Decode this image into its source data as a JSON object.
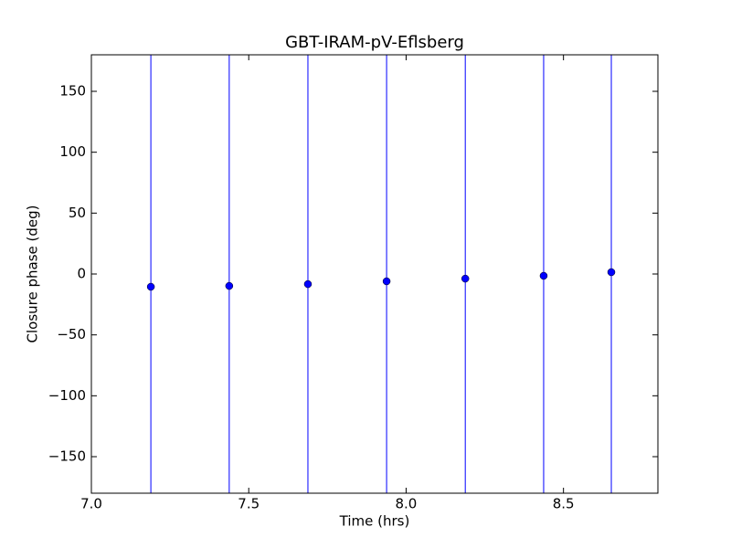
{
  "chart_data": {
    "type": "errorbar",
    "title": "GBT-IRAM-pV-Eflsberg",
    "xlabel": "Time (hrs)",
    "ylabel": "Closure phase (deg)",
    "x": [
      7.189,
      7.438,
      7.688,
      7.938,
      8.188,
      8.437,
      8.652
    ],
    "values": [
      -10.5,
      -9.8,
      -8.3,
      -6,
      -3.8,
      -1.5,
      1.5
    ],
    "errors": [
      200,
      200,
      200,
      200,
      200,
      200,
      200
    ],
    "color": "#0000ff",
    "xlim": [
      7.0,
      8.8
    ],
    "xticks": [
      {
        "value": 7,
        "label": "7.0"
      },
      7.5,
      {
        "value": 8,
        "label": "8.0"
      },
      8.5
    ],
    "ylim": [
      -180,
      180
    ],
    "yticks": [
      {
        "value": -150,
        "label": "−150"
      },
      {
        "value": -100,
        "label": "−100"
      },
      {
        "value": -50,
        "label": "−50"
      },
      0,
      50,
      100,
      150
    ],
    "grid": false
  }
}
